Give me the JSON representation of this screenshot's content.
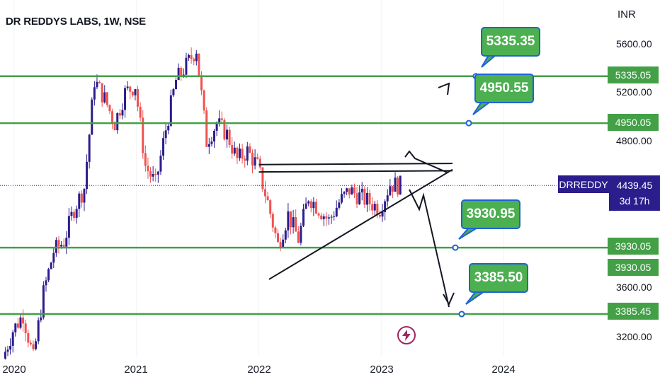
{
  "header": {
    "title": "DR REDDYS LABS, 1W, NSE"
  },
  "price_axis": {
    "currency": "INR",
    "ticks": [
      "5600.00",
      "5200.00",
      "4800.00",
      "3600.00",
      "3200.00"
    ]
  },
  "time_axis": {
    "ticks": [
      "2020",
      "2021",
      "2022",
      "2023",
      "2024"
    ]
  },
  "levels": [
    {
      "label": "5335.05",
      "value": 5335.05
    },
    {
      "label": "4950.05",
      "value": 4950.05
    },
    {
      "label": "3930.05",
      "value": 3930.05
    },
    {
      "label": "3385.45",
      "value": 3385.45
    }
  ],
  "extra_tag": {
    "label": "3930.05"
  },
  "ticker": {
    "symbol": "DRREDDY",
    "price": "4439.45",
    "countdown": "3d 17h",
    "price_value": 4439.45
  },
  "callouts": [
    {
      "label": "5335.35",
      "name": "callout-5335"
    },
    {
      "label": "4950.55",
      "name": "callout-4950"
    },
    {
      "label": "3930.95",
      "name": "callout-3930"
    },
    {
      "label": "3385.50",
      "name": "callout-3385"
    }
  ],
  "colors": {
    "up": "#2b1d8c",
    "down": "#ef5350",
    "level_line": "#43a047",
    "callout_bg": "#4caf50",
    "callout_border": "#1e63d6",
    "ticker_bg": "#2b1d8c"
  },
  "icons": {
    "alert": "lightning-bolt-icon"
  },
  "chart_data": {
    "type": "candlestick",
    "title": "DR REDDYS LABS, 1W, NSE",
    "ylabel": "INR",
    "ylim": [
      3000,
      5900
    ],
    "x_range": [
      "2019-12",
      "2024-12"
    ],
    "horizontal_levels": [
      5335.05,
      4950.05,
      3930.05,
      3385.45
    ],
    "last_price": 4439.45,
    "triangle": {
      "upper": [
        [
          "2022-01",
          4610
        ],
        [
          "2023-08",
          4620
        ]
      ],
      "upper2": [
        [
          "2022-01",
          4550
        ],
        [
          "2023-08",
          4560
        ]
      ],
      "lower": [
        [
          "2022-02",
          3670
        ],
        [
          "2023-08",
          4570
        ]
      ]
    },
    "projections": {
      "up_target": 5335.35,
      "mid_up_target": 4950.55,
      "down_target": 3930.95,
      "low_target": 3385.5
    },
    "price_path": [
      [
        "2019-12",
        3020
      ],
      [
        "2020-01",
        3250
      ],
      [
        "2020-02",
        3380
      ],
      [
        "2020-03",
        3020
      ],
      [
        "2020-04",
        3560
      ],
      [
        "2020-05",
        3900
      ],
      [
        "2020-06",
        3980
      ],
      [
        "2020-07",
        4250
      ],
      [
        "2020-08",
        4420
      ],
      [
        "2020-09",
        5300
      ],
      [
        "2020-10",
        5150
      ],
      [
        "2020-11",
        4950
      ],
      [
        "2020-12",
        5200
      ],
      [
        "2021-01",
        5260
      ],
      [
        "2021-02",
        4600
      ],
      [
        "2021-03",
        4450
      ],
      [
        "2021-04",
        4900
      ],
      [
        "2021-05",
        5300
      ],
      [
        "2021-06",
        5420
      ],
      [
        "2021-07",
        5560
      ],
      [
        "2021-08",
        4800
      ],
      [
        "2021-09",
        4950
      ],
      [
        "2021-10",
        4860
      ],
      [
        "2021-11",
        4650
      ],
      [
        "2021-12",
        4720
      ],
      [
        "2022-01",
        4600
      ],
      [
        "2022-02",
        4300
      ],
      [
        "2022-03",
        3950
      ],
      [
        "2022-04",
        4200
      ],
      [
        "2022-05",
        4000
      ],
      [
        "2022-06",
        4350
      ],
      [
        "2022-07",
        4250
      ],
      [
        "2022-08",
        4150
      ],
      [
        "2022-09",
        4300
      ],
      [
        "2022-10",
        4400
      ],
      [
        "2022-11",
        4350
      ],
      [
        "2022-12",
        4300
      ],
      [
        "2023-01",
        4250
      ],
      [
        "2023-02",
        4450
      ],
      [
        "2023-03",
        4439
      ]
    ]
  }
}
